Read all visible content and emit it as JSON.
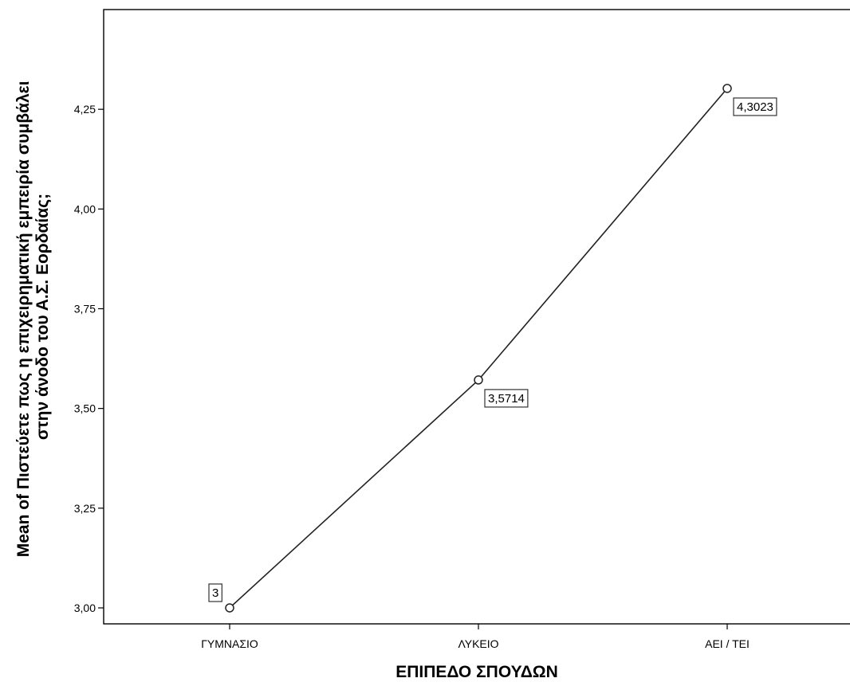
{
  "chart_data": {
    "type": "line",
    "categories": [
      "ΓΥΜΝΑΣΙΟ",
      "ΛΥΚΕΙΟ",
      "ΑΕΙ / ΤΕΙ"
    ],
    "values": [
      3,
      3.5714,
      4.3023
    ],
    "data_labels": [
      "3",
      "3,5714",
      "4,3023"
    ],
    "xlabel": "ΕΠΙΠΕΔΟ ΣΠΟΥΔΩΝ",
    "ylabel_lines": [
      "Mean of Πιστεύετε πως η επιχειρηματική εμπειρία συμβάλει",
      "στην άνοδο του Α.Σ. Εορδαίας;"
    ],
    "ylim": [
      2.96,
      4.5
    ],
    "yticks": [
      3.0,
      3.25,
      3.5,
      3.75,
      4.0,
      4.25
    ],
    "ytick_labels": [
      "3,00",
      "3,25",
      "3,50",
      "3,75",
      "4,00",
      "4,25"
    ],
    "marker": "open-circle",
    "grid": false,
    "legend": "none"
  }
}
